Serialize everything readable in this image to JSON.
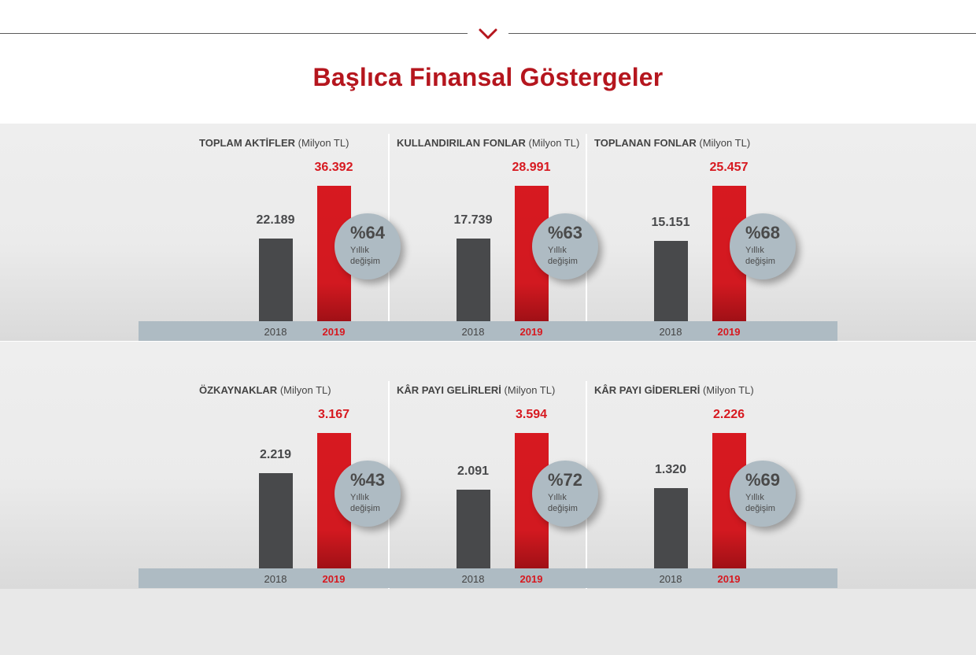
{
  "title": "Başlıca Finansal Göstergeler",
  "colors": {
    "accent_red": "#d71920",
    "title_red": "#b5161e",
    "dark_bar": "#48494b",
    "bubble": "#aebbc3"
  },
  "chart_data": [
    {
      "type": "bar",
      "title_bold": "TOPLAM AKTİFLER",
      "title_unit": "(Milyon TL)",
      "categories": [
        "2018",
        "2019"
      ],
      "values": [
        22189,
        36392
      ],
      "value_labels": [
        "22.189",
        "36.392"
      ],
      "change_value": "%64",
      "change_label": "Yıllık değişim",
      "ylim": [
        0,
        36392
      ]
    },
    {
      "type": "bar",
      "title_bold": "KULLANDIRILAN FONLAR",
      "title_unit": "(Milyon TL)",
      "categories": [
        "2018",
        "2019"
      ],
      "values": [
        17739,
        28991
      ],
      "value_labels": [
        "17.739",
        "28.991"
      ],
      "change_value": "%63",
      "change_label": "Yıllık değişim",
      "ylim": [
        0,
        28991
      ]
    },
    {
      "type": "bar",
      "title_bold": "TOPLANAN FONLAR",
      "title_unit": "(Milyon TL)",
      "categories": [
        "2018",
        "2019"
      ],
      "values": [
        15151,
        25457
      ],
      "value_labels": [
        "15.151",
        "25.457"
      ],
      "change_value": "%68",
      "change_label": "Yıllık değişim",
      "ylim": [
        0,
        25457
      ]
    },
    {
      "type": "bar",
      "title_bold": "ÖZKAYNAKLAR",
      "title_unit": "(Milyon TL)",
      "categories": [
        "2018",
        "2019"
      ],
      "values": [
        2219,
        3167
      ],
      "value_labels": [
        "2.219",
        "3.167"
      ],
      "change_value": "%43",
      "change_label": "Yıllık değişim",
      "ylim": [
        0,
        3167
      ]
    },
    {
      "type": "bar",
      "title_bold": "KÂR PAYI GELİRLERİ",
      "title_unit": "(Milyon TL)",
      "categories": [
        "2018",
        "2019"
      ],
      "values": [
        2091,
        3594
      ],
      "value_labels": [
        "2.091",
        "3.594"
      ],
      "change_value": "%72",
      "change_label": "Yıllık değişim",
      "ylim": [
        0,
        3594
      ]
    },
    {
      "type": "bar",
      "title_bold": "KÂR PAYI GİDERLERİ",
      "title_unit": "(Milyon TL)",
      "categories": [
        "2018",
        "2019"
      ],
      "values": [
        1320,
        2226
      ],
      "value_labels": [
        "1.320",
        "2.226"
      ],
      "change_value": "%69",
      "change_label": "Yıllık değişim",
      "ylim": [
        0,
        2226
      ]
    }
  ]
}
